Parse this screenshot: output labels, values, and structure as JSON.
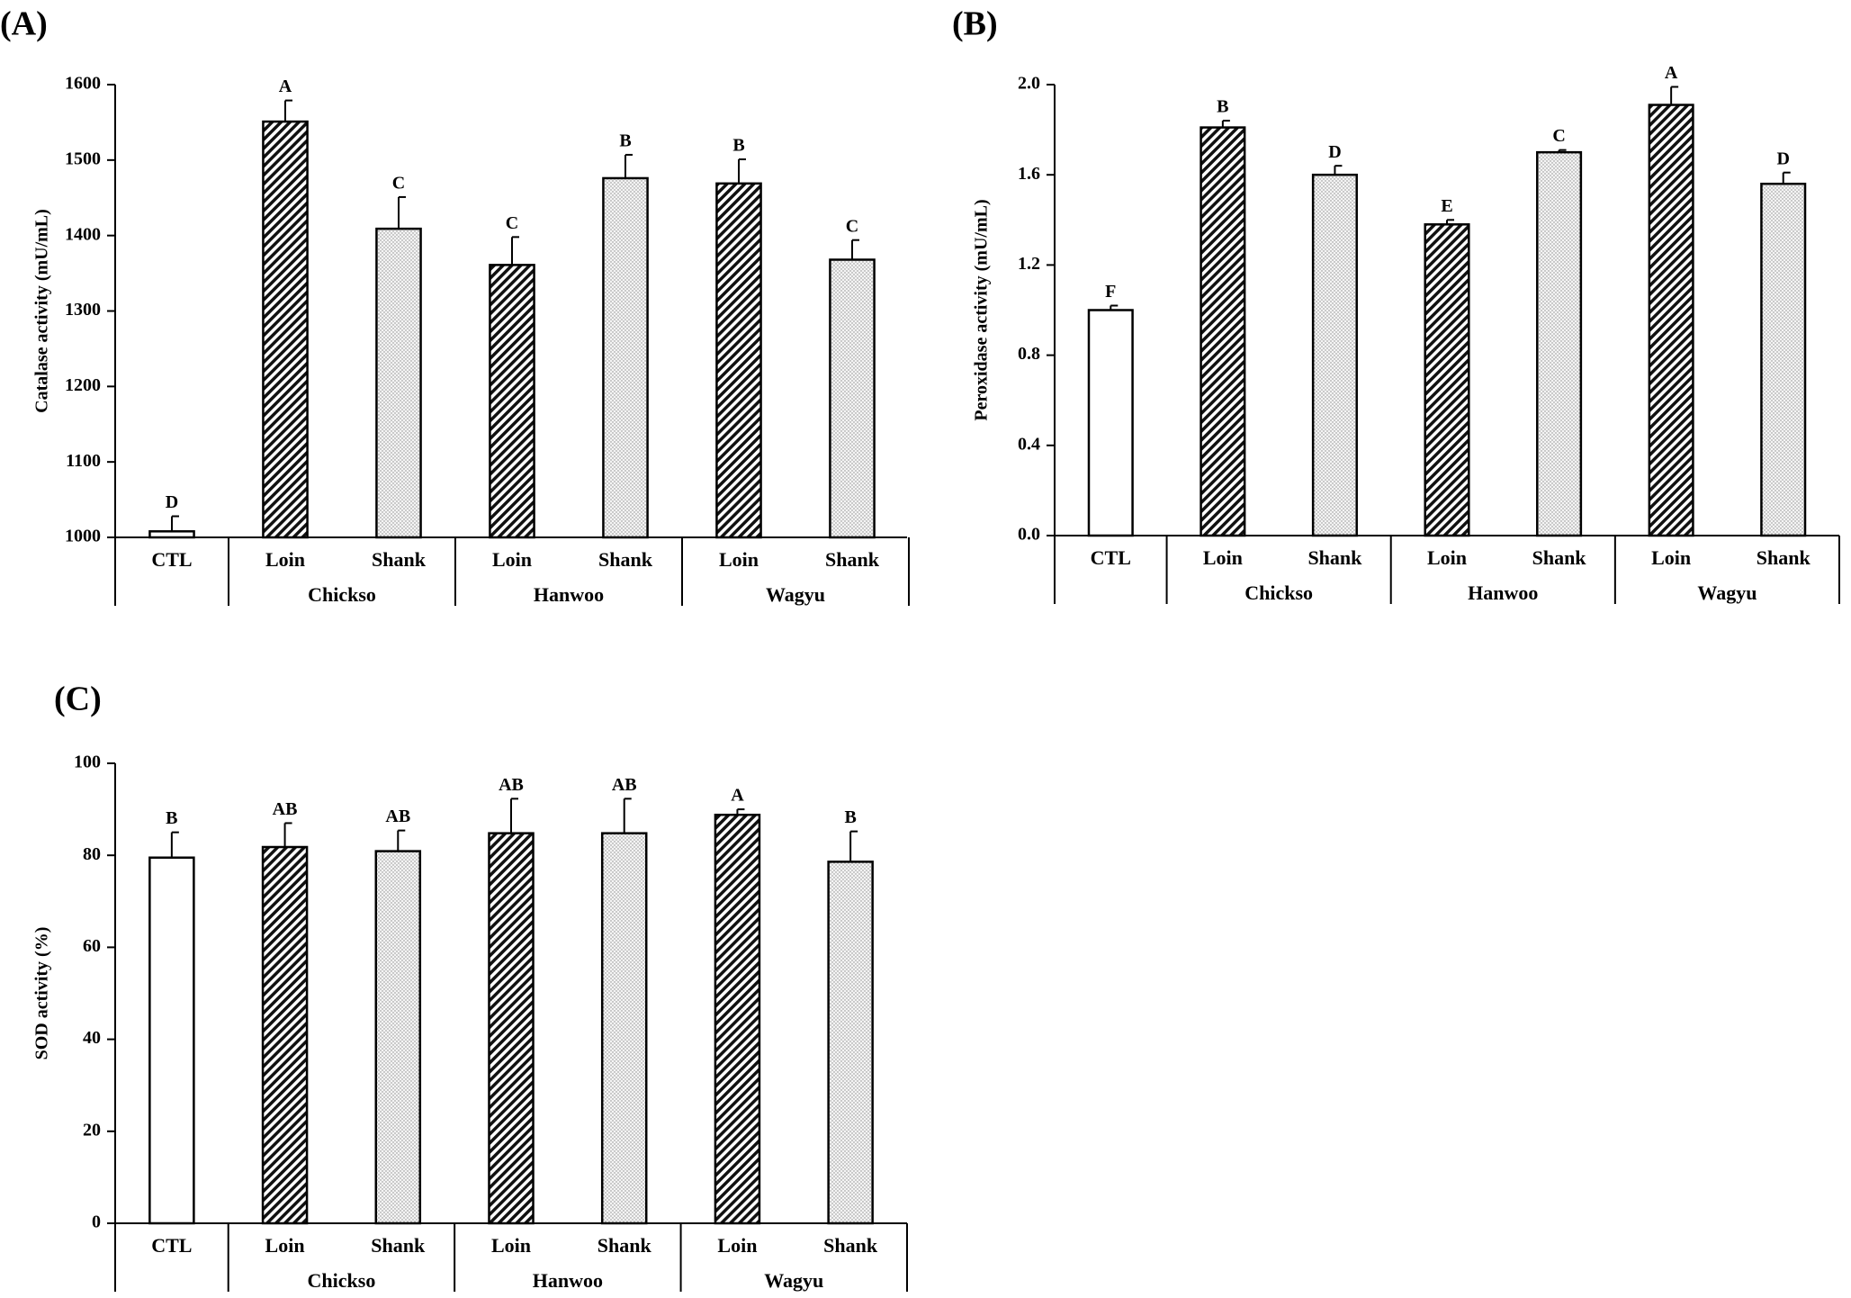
{
  "patterns": {
    "CTL": "none",
    "Loin": "hatch",
    "Shank": "dots"
  },
  "colors": {
    "stroke": "#000000",
    "fill_plain": "#ffffff",
    "hatch_fill": "#ffffff",
    "dots_fill": "#f4f4f4"
  },
  "chart_data": [
    {
      "panel_label": "(A)",
      "type": "bar",
      "ylabel": "Catalase activity (mU/mL)",
      "ylim": [
        1000,
        1600
      ],
      "yticks": [
        1000,
        1100,
        1200,
        1300,
        1400,
        1500,
        1600
      ],
      "ytick_labels": [
        "1000",
        "1100",
        "1200",
        "1300",
        "1400",
        "1500",
        "1600"
      ],
      "categories": [
        "CTL",
        "Loin",
        "Shank",
        "Loin",
        "Shank",
        "Loin",
        "Shank"
      ],
      "groups": [
        {
          "name": "",
          "span": [
            0,
            0
          ]
        },
        {
          "name": "Chickso",
          "span": [
            1,
            2
          ]
        },
        {
          "name": "Hanwoo",
          "span": [
            3,
            4
          ]
        },
        {
          "name": "Wagyu",
          "span": [
            5,
            6
          ]
        }
      ],
      "values": [
        1008,
        1551,
        1409,
        1361,
        1476,
        1469,
        1368
      ],
      "errors": [
        20,
        28,
        42,
        37,
        31,
        32,
        26
      ],
      "significance": [
        "D",
        "A",
        "C",
        "C",
        "B",
        "B",
        "C"
      ],
      "grid": false
    },
    {
      "panel_label": "(B)",
      "type": "bar",
      "ylabel": "Peroxidase activity (mU/mL)",
      "ylim": [
        0,
        2.0
      ],
      "yticks": [
        0,
        0.4,
        0.8,
        1.2,
        1.6,
        2.0
      ],
      "ytick_labels": [
        "0.0",
        "0.4",
        "0.8",
        "1.2",
        "1.6",
        "2.0"
      ],
      "categories": [
        "CTL",
        "Loin",
        "Shank",
        "Loin",
        "Shank",
        "Loin",
        "Shank"
      ],
      "groups": [
        {
          "name": "",
          "span": [
            0,
            0
          ]
        },
        {
          "name": "Chickso",
          "span": [
            1,
            2
          ]
        },
        {
          "name": "Hanwoo",
          "span": [
            3,
            4
          ]
        },
        {
          "name": "Wagyu",
          "span": [
            5,
            6
          ]
        }
      ],
      "values": [
        1.0,
        1.81,
        1.6,
        1.38,
        1.7,
        1.91,
        1.56
      ],
      "errors": [
        0.02,
        0.03,
        0.04,
        0.02,
        0.01,
        0.08,
        0.05
      ],
      "significance": [
        "F",
        "B",
        "D",
        "E",
        "C",
        "A",
        "D"
      ],
      "grid": false
    },
    {
      "panel_label": "(C)",
      "type": "bar",
      "ylabel": "SOD activity (%)",
      "ylim": [
        0,
        100
      ],
      "yticks": [
        0,
        20,
        40,
        60,
        80,
        100
      ],
      "ytick_labels": [
        "0",
        "20",
        "40",
        "60",
        "80",
        "100"
      ],
      "categories": [
        "CTL",
        "Loin",
        "Shank",
        "Loin",
        "Shank",
        "Loin",
        "Shank"
      ],
      "groups": [
        {
          "name": "",
          "span": [
            0,
            0
          ]
        },
        {
          "name": "Chickso",
          "span": [
            1,
            2
          ]
        },
        {
          "name": "Hanwoo",
          "span": [
            3,
            4
          ]
        },
        {
          "name": "Wagyu",
          "span": [
            5,
            6
          ]
        }
      ],
      "values": [
        79.5,
        81.8,
        80.9,
        84.8,
        84.8,
        88.8,
        78.6
      ],
      "errors": [
        5.5,
        5.2,
        4.5,
        7.5,
        7.5,
        1.2,
        6.6
      ],
      "significance": [
        "B",
        "AB",
        "AB",
        "AB",
        "AB",
        "A",
        "B"
      ],
      "grid": false
    }
  ]
}
